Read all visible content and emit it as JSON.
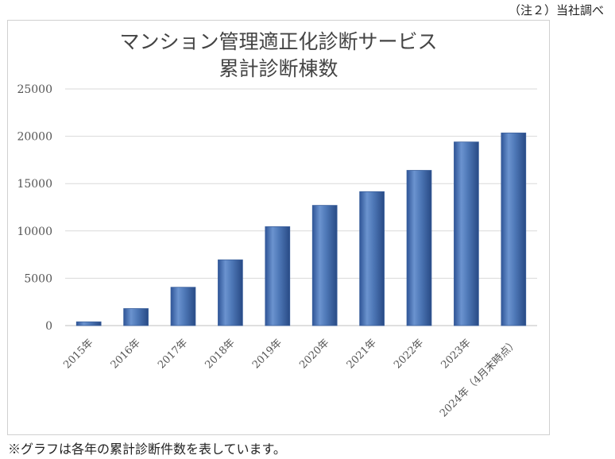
{
  "source_note": "（注２）当社調べ",
  "footnote": "※グラフは各年の累計診断件数を表しています。",
  "chart_data": {
    "type": "bar",
    "title": [
      "マンション管理適正化診断サービス",
      "累計診断棟数"
    ],
    "xlabel": "",
    "ylabel": "",
    "categories": [
      "2015年",
      "2016年",
      "2017年",
      "2018年",
      "2019年",
      "2020年",
      "2021年",
      "2022年",
      "2023年",
      "2024年（4月末時点）"
    ],
    "values": [
      400,
      1800,
      4050,
      6950,
      10450,
      12700,
      14150,
      16400,
      19400,
      20350
    ],
    "ylim": [
      0,
      25000
    ],
    "yticks": [
      0,
      5000,
      10000,
      15000,
      20000,
      25000
    ],
    "grid": true,
    "legend": "none",
    "bar_color": "#4f79b8"
  }
}
